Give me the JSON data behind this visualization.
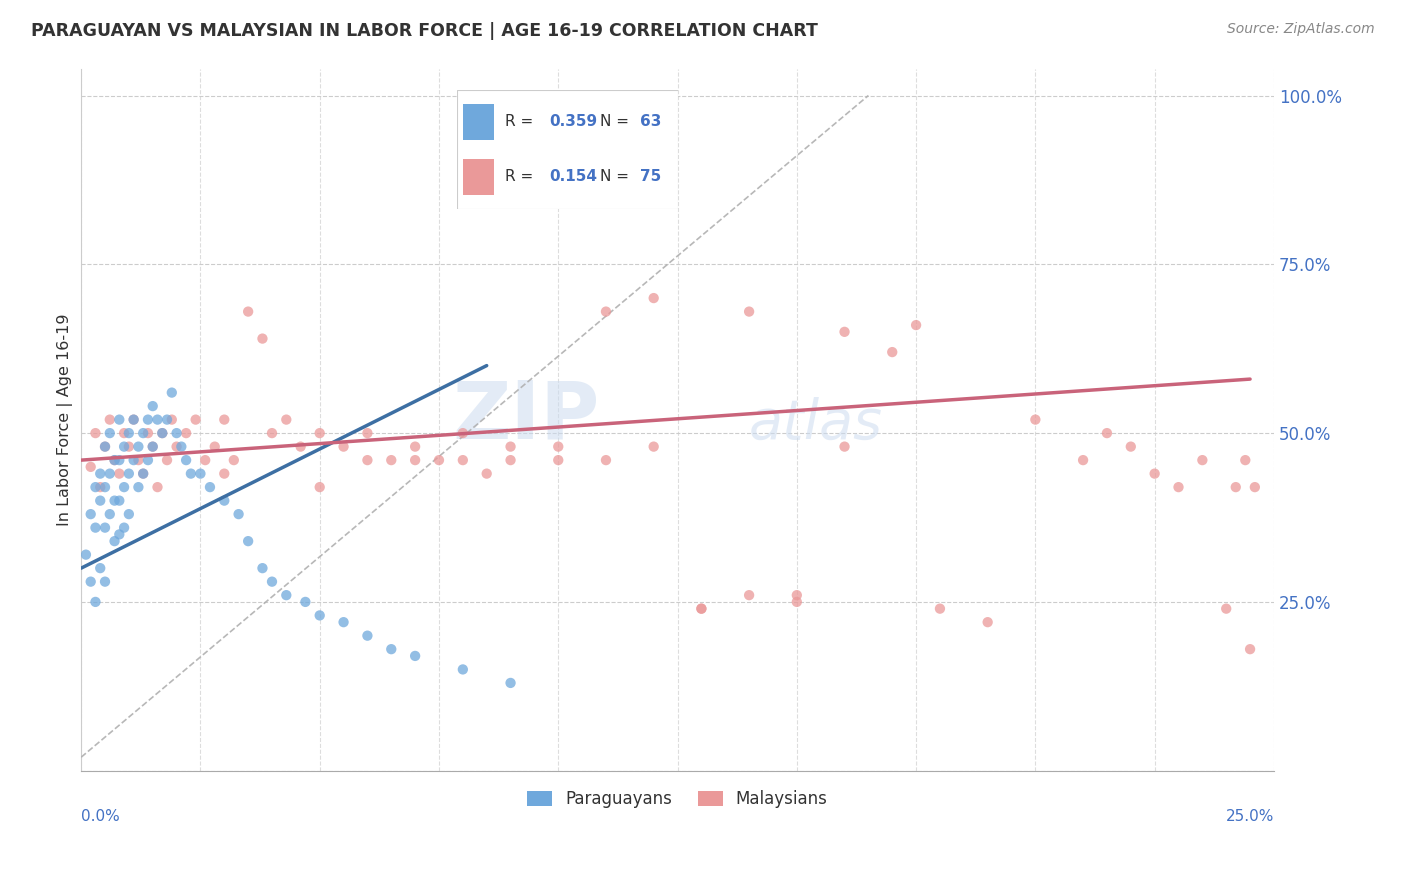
{
  "title": "PARAGUAYAN VS MALAYSIAN IN LABOR FORCE | AGE 16-19 CORRELATION CHART",
  "source": "Source: ZipAtlas.com",
  "ylabel": "In Labor Force | Age 16-19",
  "blue_color": "#6fa8dc",
  "pink_color": "#ea9999",
  "blue_line_color": "#3d6fa3",
  "pink_line_color": "#c9637a",
  "diag_color": "#b0b0b0",
  "watermark": "ZIPatlas",
  "xlim": [
    0.0,
    0.25
  ],
  "ylim": [
    0.0,
    1.0
  ],
  "blue_line": {
    "x0": 0.0,
    "y0": 0.3,
    "x1": 0.085,
    "y1": 0.6
  },
  "pink_line": {
    "x0": 0.0,
    "y0": 0.46,
    "x1": 0.245,
    "y1": 0.58
  },
  "blue_pts_x": [
    0.001,
    0.002,
    0.002,
    0.003,
    0.003,
    0.003,
    0.004,
    0.004,
    0.004,
    0.005,
    0.005,
    0.005,
    0.005,
    0.006,
    0.006,
    0.006,
    0.007,
    0.007,
    0.007,
    0.008,
    0.008,
    0.008,
    0.008,
    0.009,
    0.009,
    0.009,
    0.01,
    0.01,
    0.01,
    0.011,
    0.011,
    0.012,
    0.012,
    0.013,
    0.013,
    0.014,
    0.014,
    0.015,
    0.015,
    0.016,
    0.017,
    0.018,
    0.019,
    0.02,
    0.021,
    0.022,
    0.023,
    0.025,
    0.027,
    0.03,
    0.033,
    0.035,
    0.038,
    0.04,
    0.043,
    0.047,
    0.05,
    0.055,
    0.06,
    0.065,
    0.07,
    0.08,
    0.09
  ],
  "blue_pts_y": [
    0.32,
    0.38,
    0.28,
    0.42,
    0.36,
    0.25,
    0.44,
    0.4,
    0.3,
    0.48,
    0.42,
    0.36,
    0.28,
    0.5,
    0.44,
    0.38,
    0.46,
    0.4,
    0.34,
    0.52,
    0.46,
    0.4,
    0.35,
    0.48,
    0.42,
    0.36,
    0.5,
    0.44,
    0.38,
    0.52,
    0.46,
    0.48,
    0.42,
    0.5,
    0.44,
    0.52,
    0.46,
    0.54,
    0.48,
    0.52,
    0.5,
    0.52,
    0.56,
    0.5,
    0.48,
    0.46,
    0.44,
    0.44,
    0.42,
    0.4,
    0.38,
    0.34,
    0.3,
    0.28,
    0.26,
    0.25,
    0.23,
    0.22,
    0.2,
    0.18,
    0.17,
    0.15,
    0.13
  ],
  "pink_pts_x": [
    0.002,
    0.003,
    0.004,
    0.005,
    0.006,
    0.007,
    0.008,
    0.009,
    0.01,
    0.011,
    0.012,
    0.013,
    0.014,
    0.015,
    0.016,
    0.017,
    0.018,
    0.019,
    0.02,
    0.022,
    0.024,
    0.026,
    0.028,
    0.03,
    0.032,
    0.035,
    0.038,
    0.04,
    0.043,
    0.046,
    0.05,
    0.055,
    0.06,
    0.065,
    0.07,
    0.075,
    0.08,
    0.085,
    0.09,
    0.1,
    0.11,
    0.12,
    0.13,
    0.14,
    0.15,
    0.16,
    0.17,
    0.18,
    0.19,
    0.2,
    0.21,
    0.215,
    0.22,
    0.225,
    0.23,
    0.235,
    0.24,
    0.242,
    0.244,
    0.246,
    0.03,
    0.05,
    0.07,
    0.09,
    0.11,
    0.13,
    0.15,
    0.06,
    0.08,
    0.1,
    0.12,
    0.14,
    0.16,
    0.175,
    0.245
  ],
  "pink_pts_y": [
    0.45,
    0.5,
    0.42,
    0.48,
    0.52,
    0.46,
    0.44,
    0.5,
    0.48,
    0.52,
    0.46,
    0.44,
    0.5,
    0.48,
    0.42,
    0.5,
    0.46,
    0.52,
    0.48,
    0.5,
    0.52,
    0.46,
    0.48,
    0.52,
    0.46,
    0.68,
    0.64,
    0.5,
    0.52,
    0.48,
    0.5,
    0.48,
    0.5,
    0.46,
    0.48,
    0.46,
    0.5,
    0.44,
    0.46,
    0.48,
    0.46,
    0.48,
    0.24,
    0.26,
    0.25,
    0.48,
    0.62,
    0.24,
    0.22,
    0.52,
    0.46,
    0.5,
    0.48,
    0.44,
    0.42,
    0.46,
    0.24,
    0.42,
    0.46,
    0.42,
    0.44,
    0.42,
    0.46,
    0.48,
    0.68,
    0.24,
    0.26,
    0.46,
    0.46,
    0.46,
    0.7,
    0.68,
    0.65,
    0.66,
    0.18
  ]
}
